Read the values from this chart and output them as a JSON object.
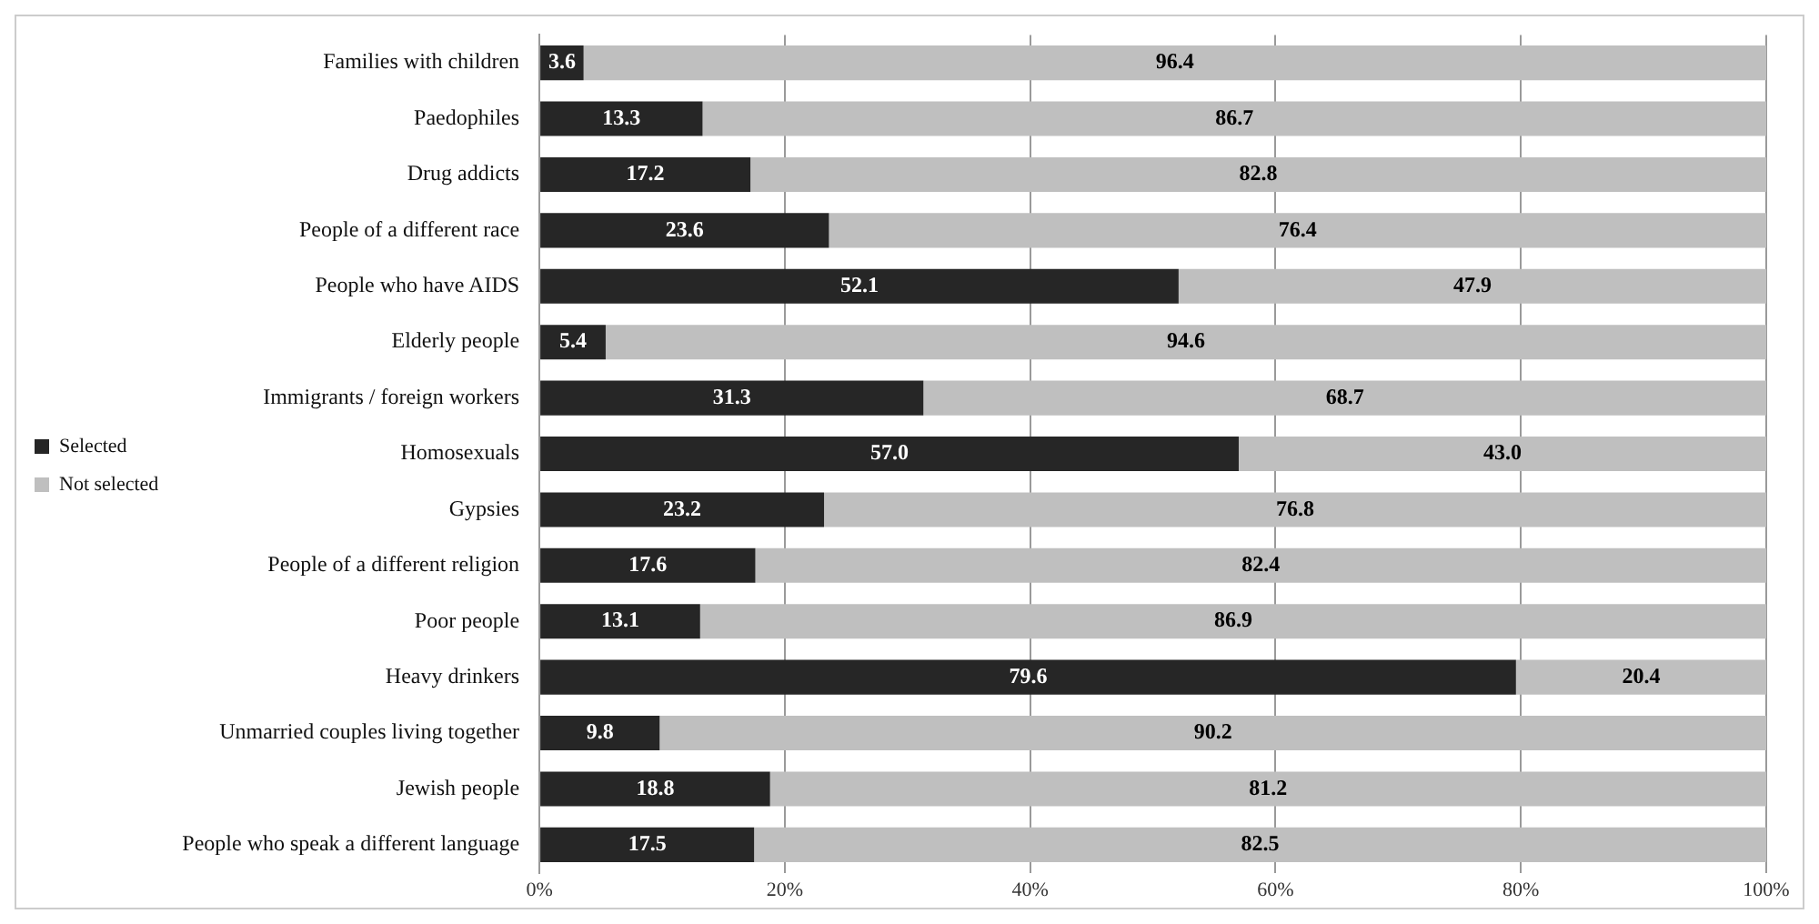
{
  "chart_data": {
    "type": "bar",
    "orientation": "horizontal",
    "stacked": true,
    "categories": [
      "Families with children",
      "Paedophiles",
      "Drug addicts",
      "People of a different race",
      "People who have AIDS",
      "Elderly people",
      "Immigrants / foreign workers",
      "Homosexuals",
      "Gypsies",
      "People of a different religion",
      "Poor people",
      "Heavy drinkers",
      "Unmarried couples living together",
      "Jewish people",
      "People who speak a different language"
    ],
    "series": [
      {
        "name": "Selected",
        "color": "#262626",
        "values": [
          3.6,
          13.3,
          17.2,
          23.6,
          52.1,
          5.4,
          31.3,
          57,
          23.2,
          17.6,
          13.1,
          79.6,
          9.8,
          18.8,
          17.5
        ],
        "value_labels": [
          "3.6",
          "13.3",
          "17.2",
          "23.6",
          "52.1",
          "5.4",
          "31.3",
          "57.0",
          "23.2",
          "17.6",
          "13.1",
          "79.6",
          "9.8",
          "18.8",
          "17.5"
        ]
      },
      {
        "name": "Not selected",
        "color": "#bfbfbf",
        "values": [
          96.4,
          86.7,
          82.8,
          76.4,
          47.9,
          94.6,
          68.7,
          43,
          76.8,
          82.4,
          86.9,
          20.4,
          90.2,
          81.2,
          82.5
        ],
        "value_labels": [
          "96.4",
          "86.7",
          "82.8",
          "76.4",
          "47.9",
          "94.6",
          "68.7",
          "43.0",
          "76.8",
          "82.4",
          "86.9",
          "20.4",
          "90.2",
          "81.2",
          "82.5"
        ]
      }
    ],
    "xlim": [
      0,
      100
    ],
    "xticks": [
      {
        "value": 0,
        "label": "0%"
      },
      {
        "value": 20,
        "label": "20%"
      },
      {
        "value": 40,
        "label": "40%"
      },
      {
        "value": 60,
        "label": "60%"
      },
      {
        "value": 80,
        "label": "80%"
      },
      {
        "value": 100,
        "label": "100%"
      }
    ],
    "grid": "x",
    "legend": "left"
  }
}
